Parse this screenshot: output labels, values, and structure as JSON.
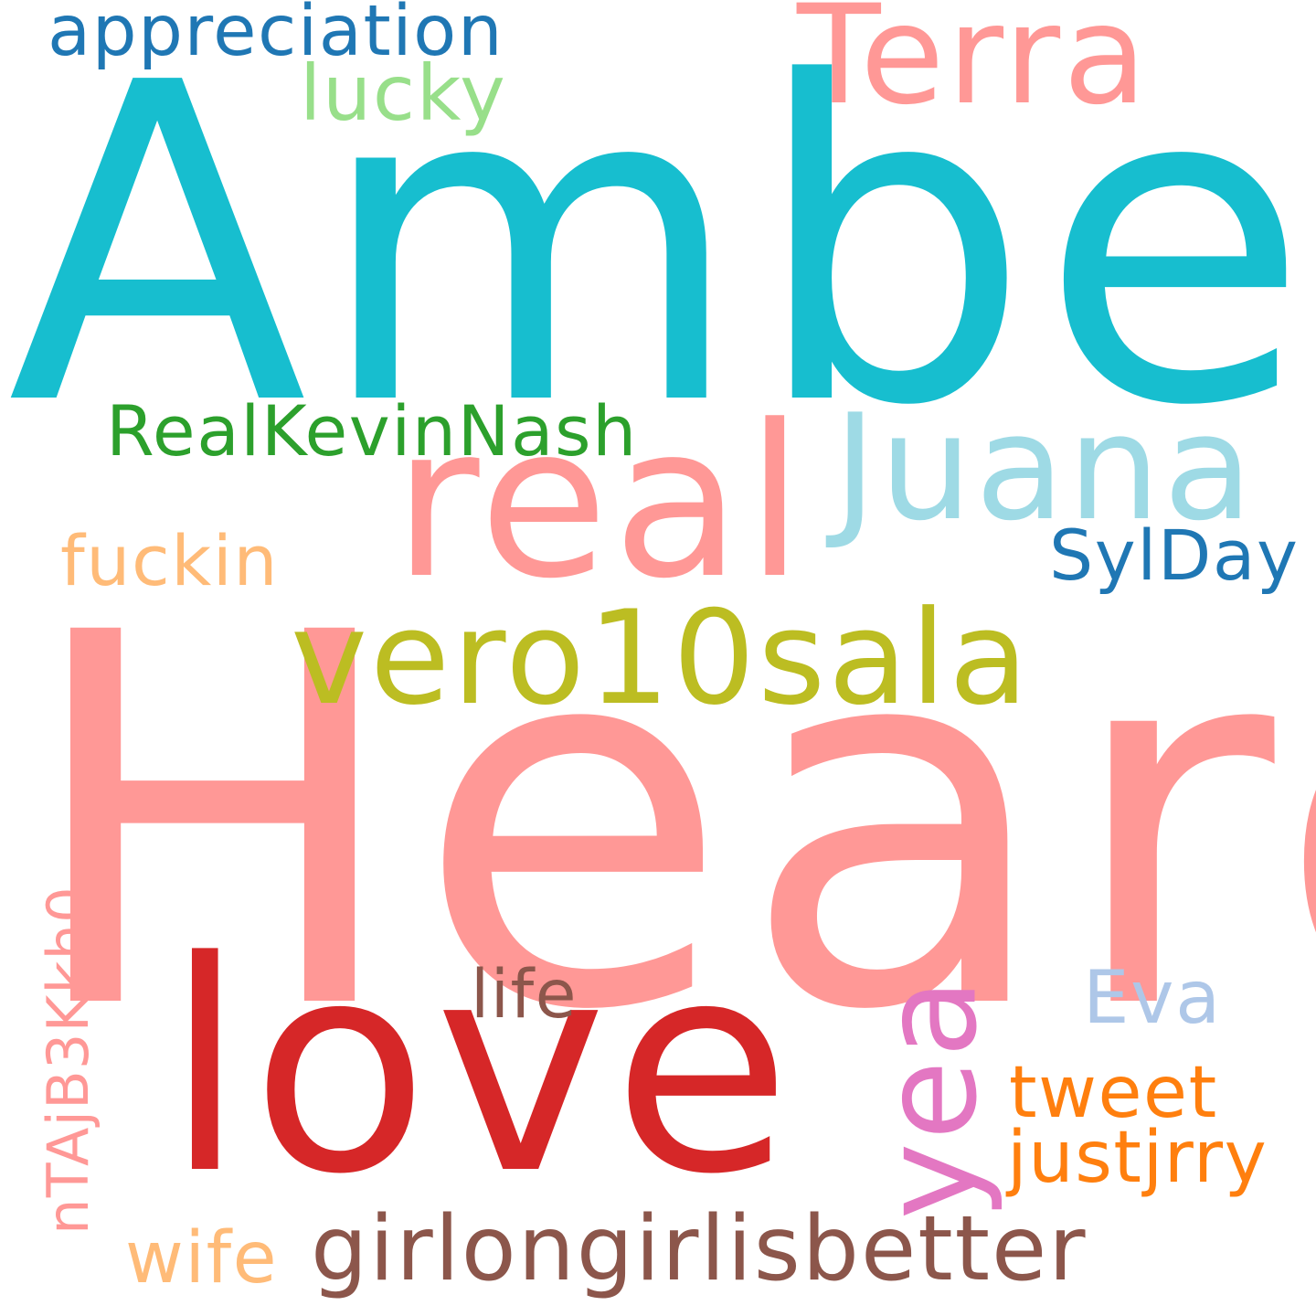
{
  "words": [
    {
      "id": "amber",
      "text": "Amber",
      "color": "#17becf"
    },
    {
      "id": "heard",
      "text": "Heard",
      "color": "#ff9896"
    },
    {
      "id": "love",
      "text": "love",
      "color": "#d62728"
    },
    {
      "id": "real",
      "text": "real",
      "color": "#ff9896"
    },
    {
      "id": "juana",
      "text": "Juana",
      "color": "#9edae5"
    },
    {
      "id": "vero10sala",
      "text": "vero10sala",
      "color": "#bcbd22"
    },
    {
      "id": "terra",
      "text": "Terra",
      "color": "#ff9896"
    },
    {
      "id": "appreciation",
      "text": "appreciation",
      "color": "#1f77b4"
    },
    {
      "id": "lucky",
      "text": "lucky",
      "color": "#98df8a"
    },
    {
      "id": "realkevinnash",
      "text": "RealKevinNash",
      "color": "#2ca02c"
    },
    {
      "id": "fuckin",
      "text": "fuckin",
      "color": "#ffbb78"
    },
    {
      "id": "sylday",
      "text": "SylDay",
      "color": "#1f77b4"
    },
    {
      "id": "yea",
      "text": "yea",
      "color": "#e377c2"
    },
    {
      "id": "ntajb3kkh0",
      "text": "nTAjB3Kkh0",
      "color": "#ff9896"
    },
    {
      "id": "life",
      "text": "life",
      "color": "#8c564b"
    },
    {
      "id": "eva",
      "text": "Eva",
      "color": "#aec7e8"
    },
    {
      "id": "tweet",
      "text": "tweet",
      "color": "#ff7f0e"
    },
    {
      "id": "justjrry",
      "text": "justjrry",
      "color": "#ff7f0e"
    },
    {
      "id": "wife",
      "text": "wife",
      "color": "#ffbb78"
    },
    {
      "id": "girlongirlisbetter",
      "text": "girlongirlisbetter",
      "color": "#8c564b"
    }
  ]
}
